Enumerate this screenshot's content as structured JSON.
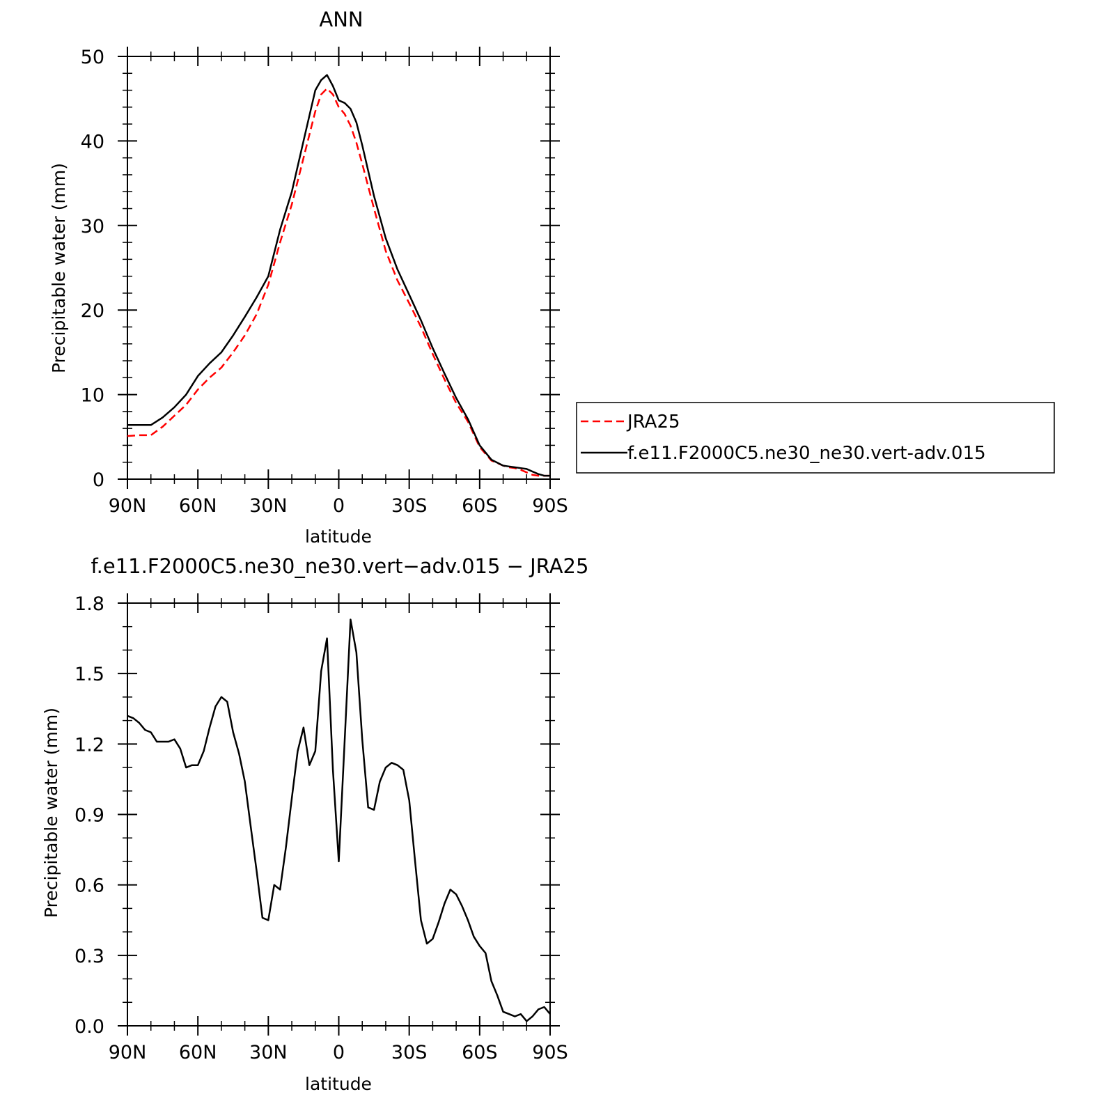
{
  "chart_data": [
    {
      "type": "line",
      "title": "ANN",
      "xlabel": "latitude",
      "ylabel": "Precipitable water (mm)",
      "xlim": [
        -90,
        90
      ],
      "ylim": [
        0,
        50
      ],
      "x_direction": "north-to-south",
      "x_ticks": [
        {
          "value": -90,
          "label": "90N"
        },
        {
          "value": -60,
          "label": "60N"
        },
        {
          "value": -30,
          "label": "30N"
        },
        {
          "value": 0,
          "label": "0"
        },
        {
          "value": 30,
          "label": "30S"
        },
        {
          "value": 60,
          "label": "60S"
        },
        {
          "value": 90,
          "label": "90S"
        }
      ],
      "y_ticks": [
        {
          "value": 0,
          "label": "0"
        },
        {
          "value": 10,
          "label": "10"
        },
        {
          "value": 20,
          "label": "20"
        },
        {
          "value": 30,
          "label": "30"
        },
        {
          "value": 40,
          "label": "40"
        },
        {
          "value": 50,
          "label": "50"
        }
      ],
      "legend": {
        "position": "right"
      },
      "series": [
        {
          "name": "JRA25",
          "color": "#ff0000",
          "style": "dashed",
          "x": [
            -90,
            -85,
            -80,
            -75,
            -70,
            -65,
            -60,
            -55,
            -50,
            -45,
            -40,
            -35,
            -30,
            -25,
            -20,
            -15,
            -10,
            -7.5,
            -5,
            -2.5,
            0,
            2.5,
            5,
            7.5,
            10,
            15,
            20,
            25,
            30,
            35,
            40,
            45,
            50,
            55,
            60,
            65,
            70,
            72.5,
            75,
            77.5,
            80,
            82.5,
            85,
            87.5,
            90
          ],
          "y": [
            5.1,
            5.2,
            5.2,
            6.2,
            7.5,
            8.8,
            10.6,
            12.0,
            13.2,
            15.0,
            17.0,
            19.5,
            23.0,
            28.0,
            32.5,
            38.0,
            43.5,
            45.5,
            46.2,
            45.5,
            44.0,
            43.2,
            41.8,
            39.8,
            37.3,
            32.0,
            27.0,
            23.5,
            20.8,
            18.0,
            14.8,
            11.8,
            9.0,
            6.8,
            3.8,
            2.2,
            1.6,
            1.4,
            1.3,
            1.1,
            0.8,
            0.5,
            0.4,
            0.4,
            0.4
          ]
        },
        {
          "name": "f.e11.F2000C5.ne30_ne30.vert-adv.015",
          "color": "#000000",
          "style": "solid",
          "x": [
            -90,
            -85,
            -80,
            -75,
            -70,
            -65,
            -60,
            -55,
            -50,
            -45,
            -40,
            -35,
            -30,
            -25,
            -20,
            -15,
            -10,
            -7.5,
            -5,
            -2.5,
            0,
            2.5,
            5,
            7.5,
            10,
            15,
            20,
            25,
            30,
            35,
            40,
            45,
            50,
            55,
            60,
            65,
            70,
            72.5,
            75,
            77.5,
            80,
            82.5,
            85,
            87.5,
            90
          ],
          "y": [
            6.4,
            6.4,
            6.4,
            7.3,
            8.5,
            10.0,
            12.2,
            13.7,
            15.0,
            17.0,
            19.2,
            21.5,
            24.0,
            29.5,
            34.0,
            40.0,
            46.0,
            47.2,
            47.8,
            46.5,
            44.8,
            44.5,
            43.8,
            42.2,
            39.5,
            33.5,
            28.5,
            24.8,
            21.8,
            18.8,
            15.5,
            12.5,
            9.6,
            7.1,
            4.0,
            2.3,
            1.6,
            1.5,
            1.4,
            1.3,
            1.2,
            0.9,
            0.6,
            0.4,
            0.4
          ]
        }
      ]
    },
    {
      "type": "line",
      "title": "f.e11.F2000C5.ne30_ne30.vert−adv.015 − JRA25",
      "xlabel": "latitude",
      "ylabel": "Precipitable water (mm)",
      "xlim": [
        -90,
        90
      ],
      "ylim": [
        0,
        1.8
      ],
      "x_direction": "north-to-south",
      "x_ticks": [
        {
          "value": -90,
          "label": "90N"
        },
        {
          "value": -60,
          "label": "60N"
        },
        {
          "value": -30,
          "label": "30N"
        },
        {
          "value": 0,
          "label": "0"
        },
        {
          "value": 30,
          "label": "30S"
        },
        {
          "value": 60,
          "label": "60S"
        },
        {
          "value": 90,
          "label": "90S"
        }
      ],
      "y_ticks": [
        {
          "value": 0,
          "label": "0.0"
        },
        {
          "value": 0.3,
          "label": "0.3"
        },
        {
          "value": 0.6,
          "label": "0.6"
        },
        {
          "value": 0.9,
          "label": "0.9"
        },
        {
          "value": 1.2,
          "label": "1.2"
        },
        {
          "value": 1.5,
          "label": "1.5"
        },
        {
          "value": 1.8,
          "label": "1.8"
        }
      ],
      "series": [
        {
          "color": "#000000",
          "style": "solid",
          "x": [
            -90,
            -87.5,
            -85,
            -82.5,
            -80,
            -77.5,
            -75,
            -72.5,
            -70,
            -67.5,
            -65,
            -62.5,
            -60,
            -57.5,
            -55,
            -52.5,
            -50,
            -47.5,
            -45,
            -42.5,
            -40,
            -37.5,
            -35,
            -32.5,
            -30,
            -27.5,
            -25,
            -22.5,
            -20,
            -17.5,
            -15,
            -12.5,
            -10,
            -7.5,
            -5,
            -2.5,
            0,
            2.5,
            5,
            7.5,
            10,
            12.5,
            15,
            17.5,
            20,
            22.5,
            25,
            27.5,
            30,
            32.5,
            35,
            37.5,
            40,
            42.5,
            45,
            47.5,
            50,
            52.5,
            55,
            57.5,
            60,
            62.5,
            65,
            67.5,
            70,
            72.5,
            75,
            77.5,
            80,
            82.5,
            85,
            87.5,
            90
          ],
          "y": [
            1.32,
            1.31,
            1.29,
            1.26,
            1.25,
            1.21,
            1.21,
            1.21,
            1.22,
            1.18,
            1.1,
            1.11,
            1.11,
            1.17,
            1.27,
            1.36,
            1.4,
            1.38,
            1.25,
            1.16,
            1.04,
            0.85,
            0.66,
            0.46,
            0.45,
            0.6,
            0.58,
            0.76,
            0.97,
            1.17,
            1.27,
            1.11,
            1.17,
            1.51,
            1.65,
            1.09,
            0.7,
            1.21,
            1.73,
            1.59,
            1.22,
            0.93,
            0.92,
            1.04,
            1.1,
            1.12,
            1.11,
            1.09,
            0.96,
            0.7,
            0.45,
            0.35,
            0.37,
            0.44,
            0.52,
            0.58,
            0.56,
            0.51,
            0.45,
            0.38,
            0.34,
            0.31,
            0.19,
            0.13,
            0.06,
            0.05,
            0.04,
            0.05,
            0.02,
            0.04,
            0.07,
            0.08,
            0.05
          ]
        }
      ]
    }
  ]
}
